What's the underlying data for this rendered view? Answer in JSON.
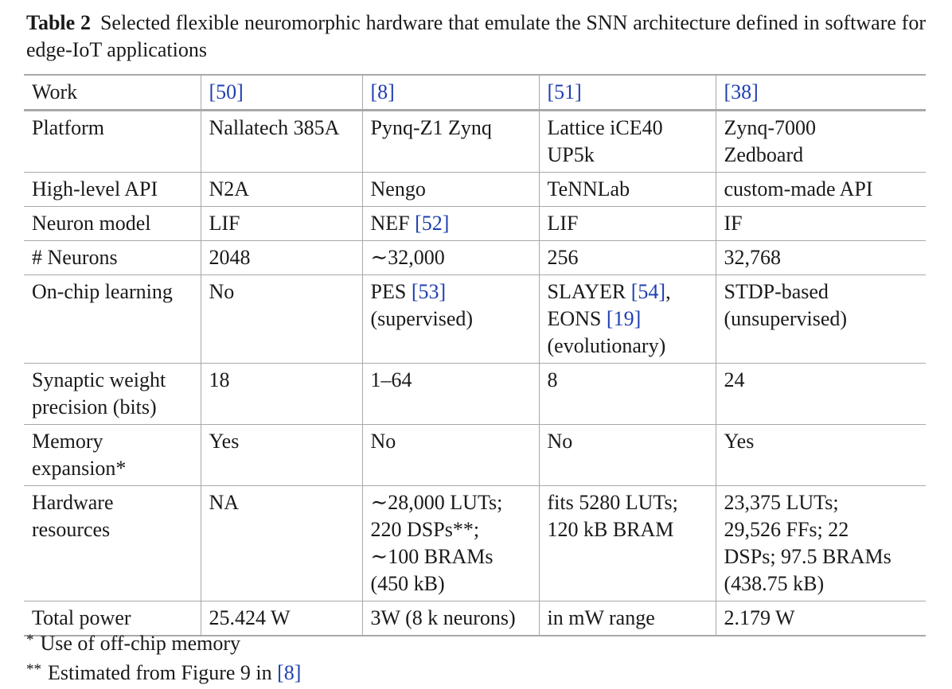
{
  "caption": {
    "label": "Table 2",
    "text": "Selected flexible neuromorphic hardware that emulate the SNN architecture defined in software for edge-IoT applications"
  },
  "table": {
    "header": {
      "label": "Work",
      "refs": [
        "[50]",
        "[8]",
        "[51]",
        "[38]"
      ]
    },
    "rows": [
      {
        "label": [
          "Platform"
        ],
        "cells": [
          [
            [
              "Nallatech 385A"
            ]
          ],
          [
            [
              "Pynq-Z1 Zynq"
            ]
          ],
          [
            [
              "Lattice iCE40"
            ],
            [
              "UP5k"
            ]
          ],
          [
            [
              "Zynq-7000"
            ],
            [
              "Zedboard"
            ]
          ]
        ]
      },
      {
        "label": [
          "High-level API"
        ],
        "cells": [
          [
            [
              "N2A"
            ]
          ],
          [
            [
              "Nengo"
            ]
          ],
          [
            [
              "TeNNLab"
            ]
          ],
          [
            [
              "custom-made API"
            ]
          ]
        ]
      },
      {
        "label": [
          "Neuron model"
        ],
        "cells": [
          [
            [
              "LIF"
            ]
          ],
          [
            [
              "NEF ",
              "[52]"
            ]
          ],
          [
            [
              "LIF"
            ]
          ],
          [
            [
              "IF"
            ]
          ]
        ]
      },
      {
        "label": [
          "# Neurons"
        ],
        "cells": [
          [
            [
              "2048"
            ]
          ],
          [
            [
              "∼32,000"
            ]
          ],
          [
            [
              "256"
            ]
          ],
          [
            [
              "32,768"
            ]
          ]
        ]
      },
      {
        "label": [
          "On-chip learning"
        ],
        "cells": [
          [
            [
              "No"
            ]
          ],
          [
            [
              "PES ",
              "[53]"
            ],
            [
              "(supervised)"
            ]
          ],
          [
            [
              "SLAYER ",
              "[54]",
              ","
            ],
            [
              "EONS ",
              "[19]"
            ],
            [
              "(evolutionary)"
            ]
          ],
          [
            [
              "STDP-based"
            ],
            [
              "(unsupervised)"
            ]
          ]
        ]
      },
      {
        "label": [
          "Synaptic weight",
          "precision (bits)"
        ],
        "cells": [
          [
            [
              "18"
            ]
          ],
          [
            [
              "1–64"
            ]
          ],
          [
            [
              "8"
            ]
          ],
          [
            [
              "24"
            ]
          ]
        ]
      },
      {
        "label": [
          "Memory",
          "expansion*"
        ],
        "cells": [
          [
            [
              "Yes"
            ]
          ],
          [
            [
              "No"
            ]
          ],
          [
            [
              "No"
            ]
          ],
          [
            [
              "Yes"
            ]
          ]
        ]
      },
      {
        "label": [
          "Hardware",
          "resources"
        ],
        "cells": [
          [
            [
              "NA"
            ]
          ],
          [
            [
              "∼28,000 LUTs;"
            ],
            [
              "220 DSPs**;"
            ],
            [
              "∼100 BRAMs"
            ],
            [
              "(450 kB)"
            ]
          ],
          [
            [
              "fits 5280 LUTs;"
            ],
            [
              "120 kB BRAM"
            ]
          ],
          [
            [
              "23,375 LUTs;"
            ],
            [
              "29,526 FFs; 22"
            ],
            [
              "DSPs; 97.5 BRAMs"
            ],
            [
              "(438.75 kB)"
            ]
          ]
        ]
      },
      {
        "label": [
          "Total power"
        ],
        "cells": [
          [
            [
              "25.424 W"
            ]
          ],
          [
            [
              "3W (8 k neurons)"
            ]
          ],
          [
            [
              "in mW range"
            ]
          ],
          [
            [
              "2.179 W"
            ]
          ]
        ]
      }
    ]
  },
  "footnotes": [
    {
      "mark": "*",
      "text": "Use of off-chip memory",
      "ref": ""
    },
    {
      "mark": "**",
      "text": "Estimated from Figure 9 in ",
      "ref": "[8]"
    }
  ]
}
